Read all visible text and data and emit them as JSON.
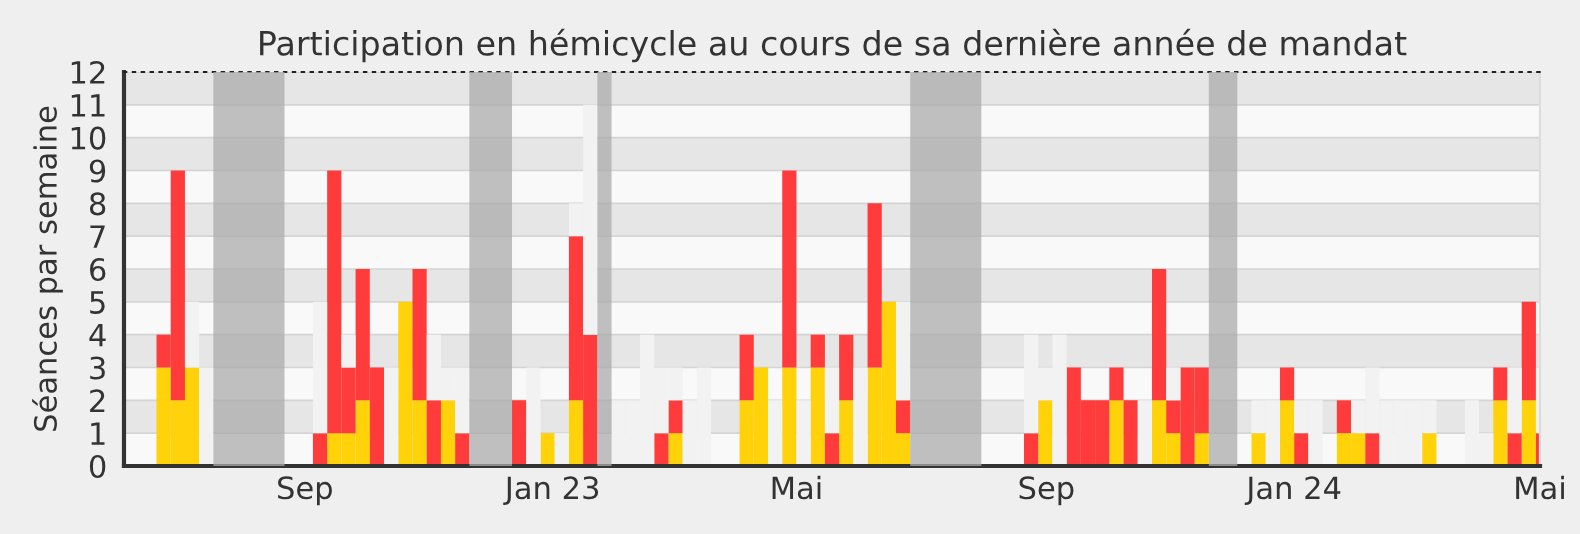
{
  "chart_data": {
    "type": "bar",
    "stacked": true,
    "title": "Participation en hémicycle au cours de sa dernière année de mandat",
    "ylabel": "Séances par semaine",
    "x": [
      "2022-06-20",
      "2022-06-27",
      "2022-07-04",
      "2022-07-11",
      "2022-07-18",
      "2022-07-25",
      "2022-08-01",
      "2022-08-08",
      "2022-08-15",
      "2022-08-22",
      "2022-08-29",
      "2022-09-05",
      "2022-09-12",
      "2022-09-19",
      "2022-09-26",
      "2022-10-03",
      "2022-10-10",
      "2022-10-17",
      "2022-10-24",
      "2022-10-31",
      "2022-11-07",
      "2022-11-14",
      "2022-11-21",
      "2022-11-28",
      "2022-12-05",
      "2022-12-12",
      "2022-12-19",
      "2022-12-26",
      "2023-01-02",
      "2023-01-09",
      "2023-01-16",
      "2023-01-23",
      "2023-01-30",
      "2023-02-06",
      "2023-02-13",
      "2023-02-20",
      "2023-02-27",
      "2023-03-06",
      "2023-03-13",
      "2023-03-20",
      "2023-03-27",
      "2023-04-03",
      "2023-04-10",
      "2023-04-17",
      "2023-04-24",
      "2023-05-01",
      "2023-05-08",
      "2023-05-15",
      "2023-05-22",
      "2023-05-29",
      "2023-06-05",
      "2023-06-12",
      "2023-06-19",
      "2023-06-26",
      "2023-07-03",
      "2023-07-10",
      "2023-07-17",
      "2023-07-24",
      "2023-07-31",
      "2023-08-07",
      "2023-08-14",
      "2023-08-21",
      "2023-08-28",
      "2023-09-04",
      "2023-09-11",
      "2023-09-18",
      "2023-09-25",
      "2023-10-02",
      "2023-10-09",
      "2023-10-16",
      "2023-10-23",
      "2023-10-30",
      "2023-11-06",
      "2023-11-13",
      "2023-11-20",
      "2023-11-27",
      "2023-12-04",
      "2023-12-11",
      "2023-12-18",
      "2023-12-25",
      "2024-01-01",
      "2024-01-08",
      "2024-01-15",
      "2024-01-22",
      "2024-01-29",
      "2024-02-05",
      "2024-02-12",
      "2024-02-19",
      "2024-02-26",
      "2024-03-04",
      "2024-03-11",
      "2024-03-18",
      "2024-03-25",
      "2024-04-01",
      "2024-04-08",
      "2024-04-15",
      "2024-04-22",
      "2024-04-29"
    ],
    "series": [
      {
        "color": "#ffd20a",
        "values": [
          3,
          2,
          3,
          0,
          0,
          0,
          0,
          0,
          0,
          0,
          0,
          0,
          1,
          1,
          2,
          0,
          0,
          5,
          2,
          0,
          2,
          0,
          0,
          0,
          0,
          0,
          0,
          1,
          0,
          2,
          0,
          0,
          0,
          0,
          0,
          0,
          1,
          0,
          0,
          0,
          0,
          2,
          3,
          0,
          3,
          0,
          3,
          0,
          2,
          0,
          3,
          5,
          1,
          0,
          0,
          0,
          0,
          0,
          0,
          0,
          0,
          0,
          2,
          0,
          0,
          0,
          0,
          2,
          0,
          0,
          2,
          1,
          0,
          1,
          0,
          0,
          0,
          1,
          0,
          2,
          0,
          0,
          0,
          1,
          1,
          0,
          0,
          0,
          0,
          1,
          0,
          0,
          0,
          0,
          2,
          0,
          2,
          0
        ]
      },
      {
        "color": "#ff3b3b",
        "values": [
          1,
          7,
          0,
          0,
          0,
          0,
          0,
          0,
          0,
          0,
          0,
          1,
          8,
          2,
          4,
          3,
          0,
          0,
          4,
          2,
          0,
          1,
          0,
          0,
          0,
          2,
          0,
          0,
          0,
          5,
          4,
          0,
          0,
          0,
          0,
          1,
          1,
          0,
          0,
          0,
          0,
          2,
          0,
          0,
          6,
          0,
          1,
          1,
          2,
          0,
          5,
          0,
          1,
          0,
          0,
          0,
          0,
          0,
          0,
          0,
          0,
          1,
          0,
          0,
          3,
          2,
          2,
          1,
          2,
          0,
          4,
          1,
          3,
          2,
          0,
          0,
          0,
          0,
          0,
          1,
          1,
          0,
          0,
          1,
          0,
          1,
          0,
          0,
          0,
          0,
          0,
          0,
          0,
          0,
          1,
          1,
          3,
          1
        ]
      },
      {
        "color": "#f2f2f2",
        "values": [
          0,
          0,
          2,
          3,
          0,
          0,
          0,
          0,
          0,
          0,
          0,
          4,
          0,
          1,
          0,
          0,
          3,
          0,
          0,
          2,
          1,
          2,
          0,
          0,
          0,
          0,
          3,
          0,
          1,
          1,
          7,
          0,
          2,
          2,
          4,
          2,
          1,
          2,
          3,
          0,
          0,
          0,
          0,
          2,
          0,
          2,
          0,
          2,
          0,
          3,
          0,
          0,
          3,
          0,
          0,
          0,
          0,
          0,
          0,
          0,
          0,
          3,
          1,
          4,
          0,
          0,
          0,
          0,
          0,
          2,
          0,
          1,
          0,
          0,
          0,
          0,
          0,
          1,
          2,
          0,
          1,
          2,
          0,
          0,
          1,
          2,
          2,
          2,
          2,
          1,
          0,
          0,
          2,
          1,
          0,
          2,
          0,
          2
        ]
      }
    ],
    "xlim": [
      "2022-06-04",
      "2024-05-01"
    ],
    "xticks": [
      {
        "value": "2022-09-01",
        "label": "Sep"
      },
      {
        "value": "2023-01-01",
        "label": "Jan 23"
      },
      {
        "value": "2023-05-01",
        "label": "Mai"
      },
      {
        "value": "2023-09-01",
        "label": "Sep"
      },
      {
        "value": "2024-01-01",
        "label": "Jan 24"
      },
      {
        "value": "2024-05-01",
        "label": "Mai"
      }
    ],
    "ylim": [
      0,
      12
    ],
    "yticks": [
      0,
      1,
      2,
      3,
      4,
      5,
      6,
      7,
      8,
      9,
      10,
      11,
      12
    ],
    "grid": "y",
    "bands": [
      {
        "axis": "x",
        "from": "2022-07-18",
        "to": "2022-08-22",
        "color": "#ababab"
      },
      {
        "axis": "x",
        "from": "2022-11-21",
        "to": "2022-12-12",
        "color": "#ababab"
      },
      {
        "axis": "x",
        "from": "2023-01-23",
        "to": "2023-01-30",
        "color": "#ababab"
      },
      {
        "axis": "x",
        "from": "2023-06-26",
        "to": "2023-07-31",
        "color": "#ababab"
      },
      {
        "axis": "x",
        "from": "2023-11-20",
        "to": "2023-12-04",
        "color": "#ababab"
      }
    ]
  }
}
